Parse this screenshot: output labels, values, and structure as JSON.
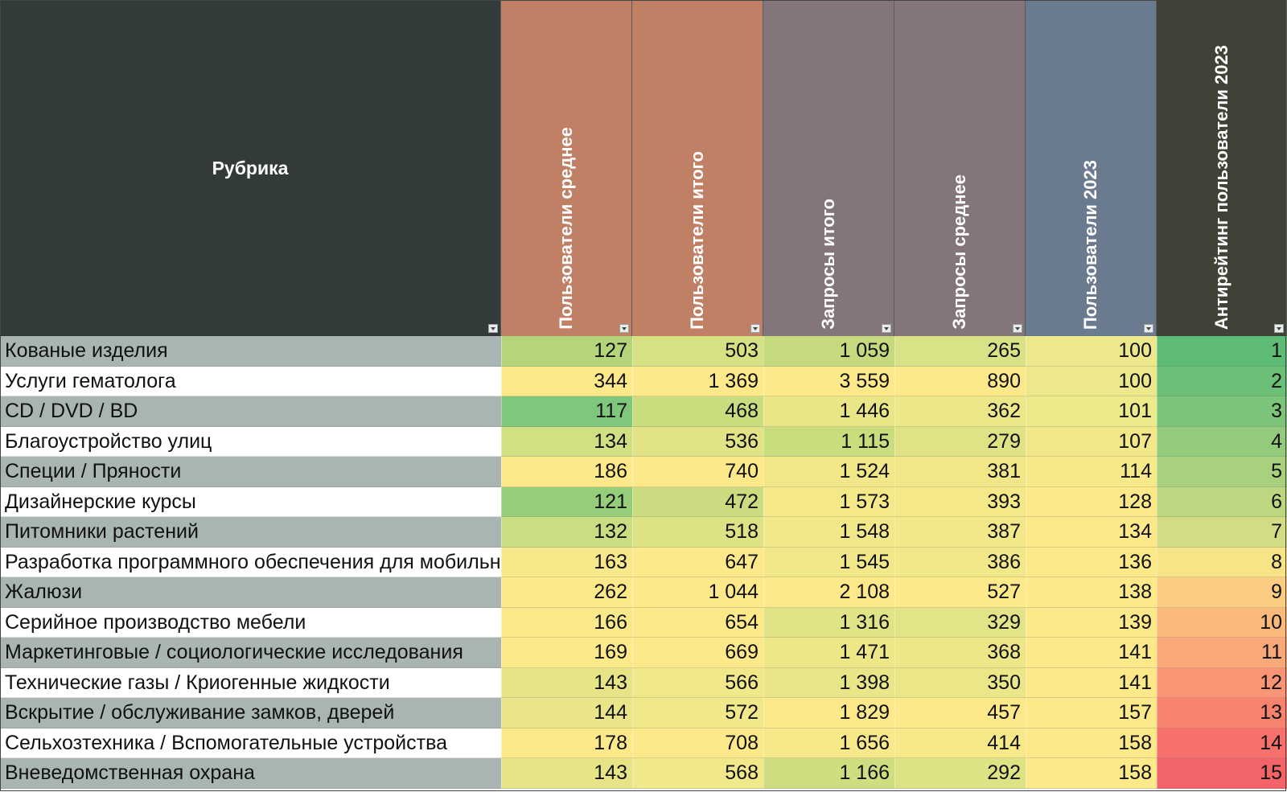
{
  "columns": [
    {
      "key": "rubric",
      "label": "Рубрика",
      "header_bg": "#323a3a"
    },
    {
      "key": "users_avg",
      "label": "Пользователи среднее",
      "header_bg": "#c08066"
    },
    {
      "key": "users_total",
      "label": "Пользователи итого",
      "header_bg": "#c08066"
    },
    {
      "key": "requests_total",
      "label": "Запросы итого",
      "header_bg": "#837579"
    },
    {
      "key": "requests_avg",
      "label": "Запросы среднее",
      "header_bg": "#837579"
    },
    {
      "key": "users_2023",
      "label": "Пользователи 2023",
      "header_bg": "#6a7b90"
    },
    {
      "key": "antirating",
      "label": "Антирейтинг пользователи 2023",
      "header_bg": "#3f4236"
    }
  ],
  "rows": [
    {
      "rubric": "Кованые изделия",
      "users_avg": "127",
      "users_total": "503",
      "requests_total": "1 059",
      "requests_avg": "265",
      "users_2023": "100",
      "antirating": "1",
      "name_bg": "#a9b5b3",
      "colors": [
        "#b5d57a",
        "#d6e184",
        "#c5da7e",
        "#d9e286",
        "#ede88b",
        "#5dbb76"
      ]
    },
    {
      "rubric": "Услуги гематолога",
      "users_avg": "344",
      "users_total": "1 369",
      "requests_total": "3 559",
      "requests_avg": "890",
      "users_2023": "100",
      "antirating": "2",
      "name_bg": "#ffffff",
      "colors": [
        "#fde98a",
        "#fde98a",
        "#fde98a",
        "#fde98a",
        "#ede88b",
        "#6cbf76"
      ]
    },
    {
      "rubric": "CD / DVD / BD",
      "users_avg": "117",
      "users_total": "468",
      "requests_total": "1 446",
      "requests_avg": "362",
      "users_2023": "101",
      "antirating": "3",
      "name_bg": "#a9b5b3",
      "colors": [
        "#7fc77a",
        "#c9dc7e",
        "#e9e688",
        "#ece788",
        "#edea8b",
        "#7cc479"
      ]
    },
    {
      "rubric": "Благоустройство улиц",
      "users_avg": "134",
      "users_total": "536",
      "requests_total": "1 115",
      "requests_avg": "279",
      "users_2023": "107",
      "antirating": "4",
      "name_bg": "#ffffff",
      "colors": [
        "#d2df82",
        "#e1e386",
        "#c9dc7e",
        "#dfe386",
        "#f2e889",
        "#93ca7b"
      ]
    },
    {
      "rubric": "Специи / Пряности",
      "users_avg": "186",
      "users_total": "740",
      "requests_total": "1 524",
      "requests_avg": "381",
      "users_2023": "114",
      "antirating": "5",
      "name_bg": "#a9b5b3",
      "colors": [
        "#fde98a",
        "#fde98a",
        "#f1e789",
        "#f1e789",
        "#f6e98a",
        "#a8d07d"
      ]
    },
    {
      "rubric": "Дизайнерские курсы",
      "users_avg": "121",
      "users_total": "472",
      "requests_total": "1 573",
      "requests_avg": "393",
      "users_2023": "128",
      "antirating": "6",
      "name_bg": "#ffffff",
      "colors": [
        "#95cd7b",
        "#cadc7f",
        "#f4e889",
        "#f4e889",
        "#fde98a",
        "#bdd680"
      ]
    },
    {
      "rubric": "Питомники растений",
      "users_avg": "132",
      "users_total": "518",
      "requests_total": "1 548",
      "requests_avg": "387",
      "users_2023": "134",
      "antirating": "7",
      "name_bg": "#a9b5b3",
      "colors": [
        "#cadd80",
        "#dde285",
        "#f2e889",
        "#f2e889",
        "#fde98a",
        "#d3dc83"
      ]
    },
    {
      "rubric": "Разработка программного обеспечения для мобильных устройств",
      "users_avg": "163",
      "users_total": "647",
      "requests_total": "1 545",
      "requests_avg": "386",
      "users_2023": "136",
      "antirating": "8",
      "name_bg": "#ffffff",
      "colors": [
        "#f7e889",
        "#fde98a",
        "#f2e889",
        "#f2e889",
        "#fde98a",
        "#f6e487"
      ]
    },
    {
      "rubric": "Жалюзи",
      "users_avg": "262",
      "users_total": "1 044",
      "requests_total": "2 108",
      "requests_avg": "527",
      "users_2023": "138",
      "antirating": "9",
      "name_bg": "#a9b5b3",
      "colors": [
        "#fde98a",
        "#fde98a",
        "#fde98a",
        "#fde98a",
        "#fde98a",
        "#fbcd82"
      ]
    },
    {
      "rubric": "Серийное производство мебели",
      "users_avg": "166",
      "users_total": "654",
      "requests_total": "1 316",
      "requests_avg": "329",
      "users_2023": "139",
      "antirating": "10",
      "name_bg": "#ffffff",
      "colors": [
        "#fae98a",
        "#fde98a",
        "#e0e386",
        "#e3e487",
        "#fde98a",
        "#fbb97c"
      ]
    },
    {
      "rubric": "Маркетинговые / социологические исследования",
      "users_avg": "169",
      "users_total": "669",
      "requests_total": "1 471",
      "requests_avg": "368",
      "users_2023": "141",
      "antirating": "11",
      "name_bg": "#a9b5b3",
      "colors": [
        "#fce98a",
        "#fde98a",
        "#eee788",
        "#eee788",
        "#fde98a",
        "#f9a878"
      ]
    },
    {
      "rubric": "Технические газы / Криогенные жидкости",
      "users_avg": "143",
      "users_total": "566",
      "requests_total": "1 398",
      "requests_avg": "350",
      "users_2023": "141",
      "antirating": "12",
      "name_bg": "#ffffff",
      "colors": [
        "#e6e487",
        "#f0e889",
        "#e8e688",
        "#ebe788",
        "#fde98a",
        "#f99474"
      ]
    },
    {
      "rubric": "Вскрытие / обслуживание замков, дверей",
      "users_avg": "144",
      "users_total": "572",
      "requests_total": "1 829",
      "requests_avg": "457",
      "users_2023": "157",
      "antirating": "13",
      "name_bg": "#a9b5b3",
      "colors": [
        "#e9e588",
        "#f1e889",
        "#fde98a",
        "#fde98a",
        "#fde98a",
        "#f7836f"
      ]
    },
    {
      "rubric": "Сельхозтехника / Вспомогательные устройства",
      "users_avg": "178",
      "users_total": "708",
      "requests_total": "1 656",
      "requests_avg": "414",
      "users_2023": "158",
      "antirating": "14",
      "name_bg": "#ffffff",
      "colors": [
        "#fde98a",
        "#fde98a",
        "#f7e98a",
        "#f7e98a",
        "#fde98a",
        "#f6716b"
      ]
    },
    {
      "rubric": "Вневедомственная охрана",
      "users_avg": "143",
      "users_total": "568",
      "requests_total": "1 166",
      "requests_avg": "292",
      "users_2023": "158",
      "antirating": "15",
      "name_bg": "#a9b5b3",
      "colors": [
        "#e6e487",
        "#f0e889",
        "#cfdd81",
        "#dde285",
        "#fde98a",
        "#f26468"
      ]
    }
  ]
}
